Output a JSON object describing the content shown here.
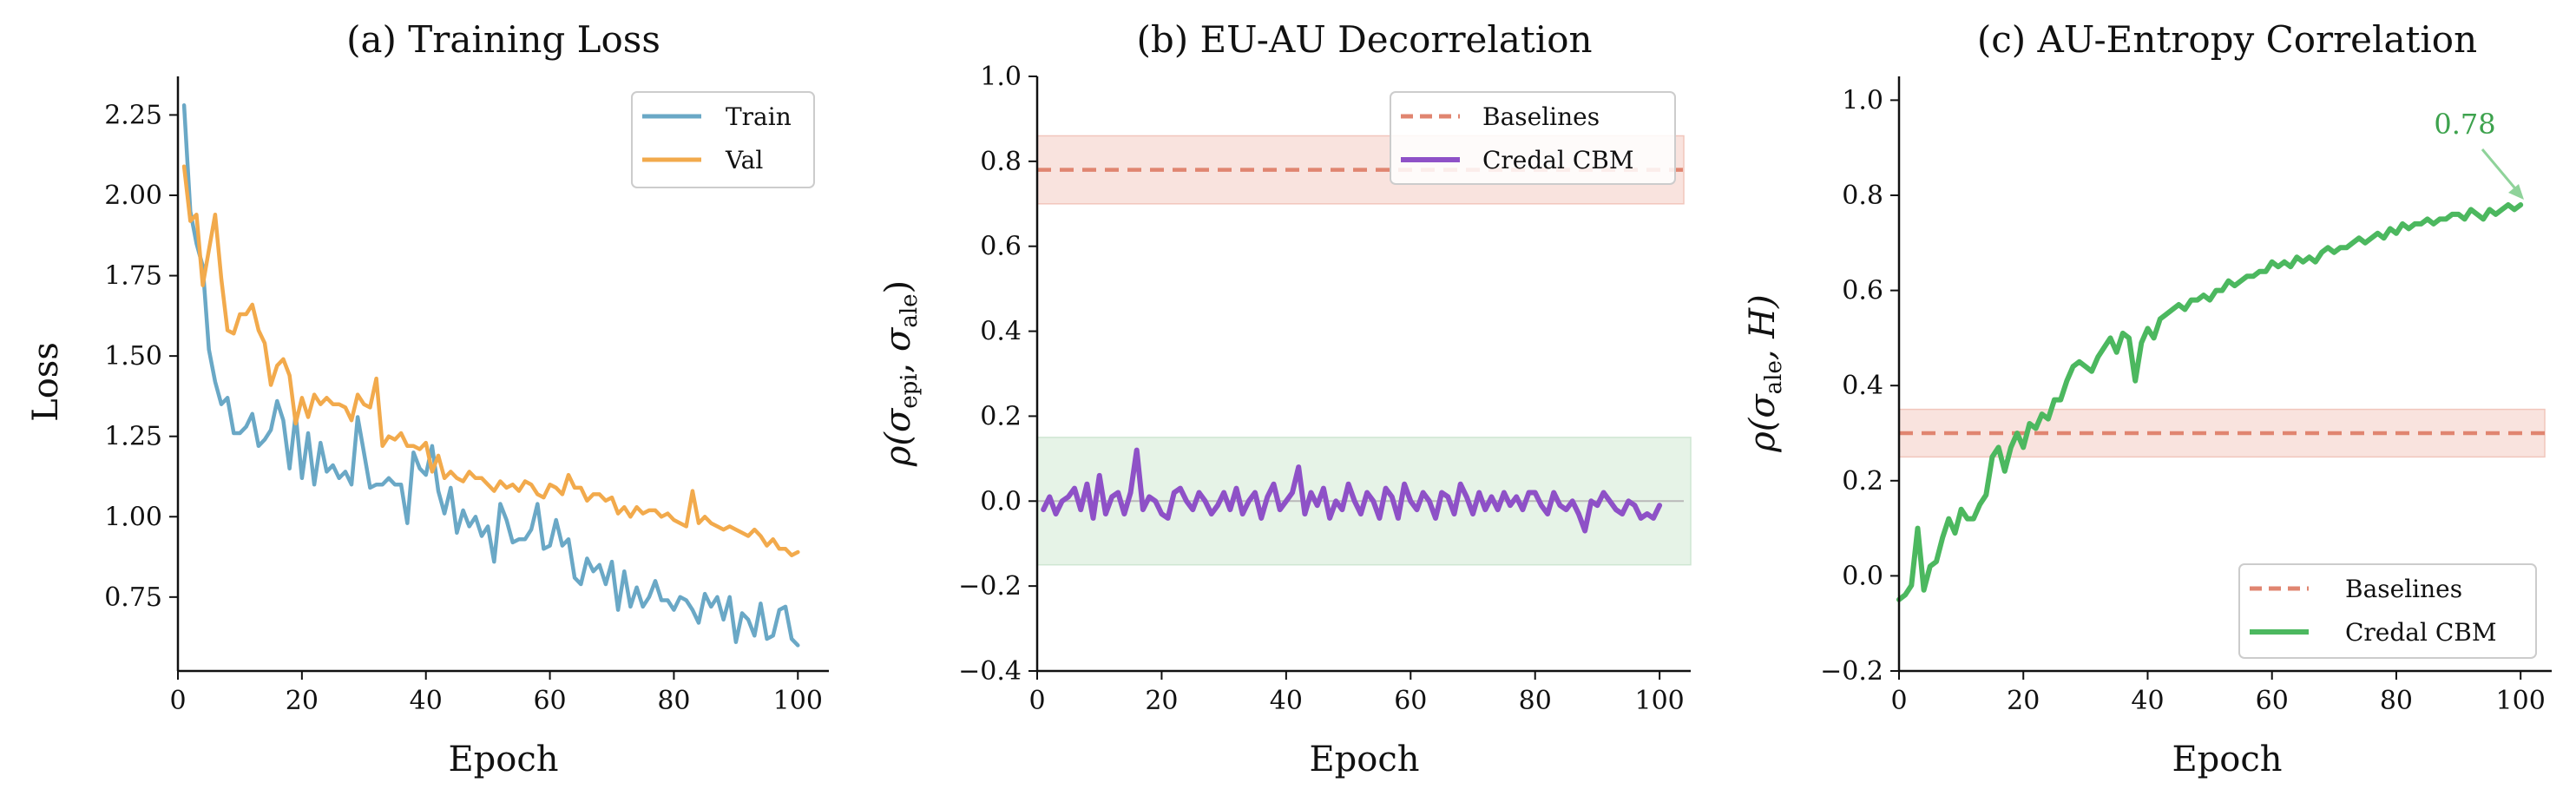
{
  "colors": {
    "train": "#6aa8c6",
    "val": "#f2aa4c",
    "baseline": "#e08570",
    "credal_b": "#8e51c7",
    "credal_c": "#4cb85f",
    "axis": "#111111",
    "baseline_band": "#f9e3de",
    "zero_band": "#e6f3e7",
    "zero_line": "#b8b8b8",
    "annot": "#3da24d"
  },
  "chart_data": [
    {
      "type": "line",
      "title": "(a) Training Loss",
      "xlabel": "Epoch",
      "ylabel": "Loss",
      "xlim": [
        0,
        105
      ],
      "ylim": [
        0.52,
        2.37
      ],
      "xticks": [
        "0",
        "20",
        "40",
        "60",
        "80",
        "100"
      ],
      "xtick_values": [
        0,
        20,
        40,
        60,
        80,
        100
      ],
      "yticks": [
        "0.75",
        "1.00",
        "1.25",
        "1.50",
        "1.75",
        "2.00",
        "2.25"
      ],
      "ytick_values": [
        0.75,
        1.0,
        1.25,
        1.5,
        1.75,
        2.0,
        2.25
      ],
      "legend": [
        "Train",
        "Val"
      ],
      "x": [
        1,
        2,
        3,
        4,
        5,
        6,
        7,
        8,
        9,
        10,
        11,
        12,
        13,
        14,
        15,
        16,
        17,
        18,
        19,
        20,
        21,
        22,
        23,
        24,
        25,
        26,
        27,
        28,
        29,
        30,
        31,
        32,
        33,
        34,
        35,
        36,
        37,
        38,
        39,
        40,
        41,
        42,
        43,
        44,
        45,
        46,
        47,
        48,
        49,
        50,
        51,
        52,
        53,
        54,
        55,
        56,
        57,
        58,
        59,
        60,
        61,
        62,
        63,
        64,
        65,
        66,
        67,
        68,
        69,
        70,
        71,
        72,
        73,
        74,
        75,
        76,
        77,
        78,
        79,
        80,
        81,
        82,
        83,
        84,
        85,
        86,
        87,
        88,
        89,
        90,
        91,
        92,
        93,
        94,
        95,
        96,
        97,
        98,
        99,
        100
      ],
      "series": [
        {
          "name": "Train",
          "color_key": "train",
          "values": [
            2.28,
            1.95,
            1.85,
            1.78,
            1.52,
            1.42,
            1.35,
            1.37,
            1.26,
            1.26,
            1.28,
            1.32,
            1.22,
            1.24,
            1.27,
            1.36,
            1.3,
            1.15,
            1.32,
            1.12,
            1.26,
            1.1,
            1.23,
            1.14,
            1.16,
            1.12,
            1.14,
            1.1,
            1.31,
            1.2,
            1.09,
            1.1,
            1.1,
            1.12,
            1.1,
            1.1,
            0.98,
            1.2,
            1.15,
            1.13,
            1.22,
            1.08,
            1.01,
            1.09,
            0.95,
            1.02,
            0.97,
            1.0,
            0.94,
            0.97,
            0.86,
            1.04,
            0.99,
            0.92,
            0.93,
            0.93,
            0.96,
            1.04,
            0.9,
            0.91,
            0.99,
            0.91,
            0.93,
            0.81,
            0.79,
            0.87,
            0.83,
            0.85,
            0.79,
            0.86,
            0.71,
            0.83,
            0.72,
            0.78,
            0.72,
            0.75,
            0.8,
            0.74,
            0.74,
            0.71,
            0.75,
            0.74,
            0.71,
            0.67,
            0.76,
            0.72,
            0.75,
            0.68,
            0.75,
            0.61,
            0.7,
            0.68,
            0.63,
            0.73,
            0.62,
            0.63,
            0.71,
            0.72,
            0.62,
            0.6
          ]
        },
        {
          "name": "Val",
          "color_key": "val",
          "values": [
            2.09,
            1.92,
            1.94,
            1.72,
            1.83,
            1.94,
            1.74,
            1.58,
            1.57,
            1.63,
            1.63,
            1.66,
            1.58,
            1.54,
            1.41,
            1.47,
            1.49,
            1.44,
            1.29,
            1.37,
            1.31,
            1.38,
            1.35,
            1.37,
            1.35,
            1.35,
            1.34,
            1.3,
            1.38,
            1.35,
            1.34,
            1.43,
            1.22,
            1.25,
            1.24,
            1.26,
            1.22,
            1.22,
            1.21,
            1.23,
            1.14,
            1.19,
            1.12,
            1.14,
            1.12,
            1.11,
            1.14,
            1.12,
            1.12,
            1.1,
            1.08,
            1.11,
            1.09,
            1.1,
            1.08,
            1.11,
            1.1,
            1.07,
            1.06,
            1.1,
            1.09,
            1.07,
            1.13,
            1.09,
            1.09,
            1.05,
            1.07,
            1.07,
            1.05,
            1.06,
            1.01,
            1.03,
            1.0,
            1.03,
            1.01,
            1.02,
            1.02,
            1.0,
            1.01,
            0.99,
            0.98,
            0.97,
            1.08,
            0.98,
            1.0,
            0.98,
            0.97,
            0.96,
            0.97,
            0.96,
            0.95,
            0.94,
            0.96,
            0.94,
            0.91,
            0.93,
            0.9,
            0.9,
            0.88,
            0.89
          ]
        }
      ]
    },
    {
      "type": "line",
      "title": "(b) EU-AU Decorrelation",
      "xlabel": "Epoch",
      "ylabel": "ρ(σepi, σale)",
      "ylabel_parts": {
        "rho": "ρ(",
        "sigma1": "σ",
        "sub1": "epi",
        "sep": ", ",
        "sigma2": "σ",
        "sub2": "ale",
        "close": ")"
      },
      "xlim": [
        0,
        105
      ],
      "ylim": [
        -0.4,
        1.0
      ],
      "xticks": [
        "0",
        "20",
        "40",
        "60",
        "80",
        "100"
      ],
      "xtick_values": [
        0,
        20,
        40,
        60,
        80,
        100
      ],
      "yticks": [
        "−0.4",
        "−0.2",
        "0.0",
        "0.2",
        "0.4",
        "0.6",
        "0.8",
        "1.0"
      ],
      "ytick_values": [
        -0.4,
        -0.2,
        0.0,
        0.2,
        0.4,
        0.6,
        0.8,
        1.0
      ],
      "legend": [
        "Baselines",
        "Credal CBM"
      ],
      "baseline": {
        "value": 0.78,
        "band": [
          0.7,
          0.86
        ]
      },
      "zero_band": [
        -0.15,
        0.15
      ],
      "x": [
        1,
        2,
        3,
        4,
        5,
        6,
        7,
        8,
        9,
        10,
        11,
        12,
        13,
        14,
        15,
        16,
        17,
        18,
        19,
        20,
        21,
        22,
        23,
        24,
        25,
        26,
        27,
        28,
        29,
        30,
        31,
        32,
        33,
        34,
        35,
        36,
        37,
        38,
        39,
        40,
        41,
        42,
        43,
        44,
        45,
        46,
        47,
        48,
        49,
        50,
        51,
        52,
        53,
        54,
        55,
        56,
        57,
        58,
        59,
        60,
        61,
        62,
        63,
        64,
        65,
        66,
        67,
        68,
        69,
        70,
        71,
        72,
        73,
        74,
        75,
        76,
        77,
        78,
        79,
        80,
        81,
        82,
        83,
        84,
        85,
        86,
        87,
        88,
        89,
        90,
        91,
        92,
        93,
        94,
        95,
        96,
        97,
        98,
        99,
        100
      ],
      "series": [
        {
          "name": "Credal CBM",
          "color_key": "credal_b",
          "values": [
            -0.02,
            0.01,
            -0.03,
            0.0,
            0.01,
            0.03,
            -0.02,
            0.04,
            -0.04,
            0.06,
            -0.03,
            0.01,
            0.02,
            -0.03,
            0.02,
            0.12,
            -0.02,
            0.01,
            0.0,
            -0.03,
            -0.04,
            0.02,
            0.03,
            0.0,
            -0.02,
            0.02,
            0.0,
            -0.03,
            -0.01,
            0.02,
            -0.02,
            0.03,
            -0.03,
            0.0,
            0.02,
            -0.04,
            0.01,
            0.04,
            -0.02,
            0.0,
            0.02,
            0.08,
            -0.03,
            0.02,
            -0.01,
            0.03,
            -0.04,
            0.0,
            -0.02,
            0.04,
            0.0,
            -0.03,
            0.02,
            0.0,
            -0.04,
            0.03,
            0.01,
            -0.04,
            0.04,
            0.0,
            -0.02,
            0.02,
            0.0,
            -0.04,
            0.02,
            0.01,
            -0.03,
            0.04,
            0.01,
            -0.03,
            0.02,
            -0.02,
            0.01,
            -0.02,
            0.02,
            -0.01,
            0.01,
            -0.02,
            0.02,
            0.02,
            -0.01,
            -0.03,
            0.02,
            -0.01,
            -0.02,
            0.0,
            -0.03,
            -0.07,
            0.0,
            -0.01,
            0.02,
            0.0,
            -0.02,
            -0.03,
            0.0,
            -0.01,
            -0.04,
            -0.03,
            -0.04,
            -0.01
          ]
        }
      ]
    },
    {
      "type": "line",
      "title": "(c) AU-Entropy Correlation",
      "xlabel": "Epoch",
      "ylabel": "ρ(σale, H)",
      "ylabel_parts": {
        "rho": "ρ(",
        "sigma1": "σ",
        "sub1": "ale",
        "rest": ", H)"
      },
      "xlim": [
        0,
        105
      ],
      "ylim": [
        -0.2,
        1.05
      ],
      "xticks": [
        "0",
        "20",
        "40",
        "60",
        "80",
        "100"
      ],
      "xtick_values": [
        0,
        20,
        40,
        60,
        80,
        100
      ],
      "yticks": [
        "−0.2",
        "0.0",
        "0.2",
        "0.4",
        "0.6",
        "0.8",
        "1.0"
      ],
      "ytick_values": [
        -0.2,
        0.0,
        0.2,
        0.4,
        0.6,
        0.8,
        1.0
      ],
      "legend": [
        "Baselines",
        "Credal CBM"
      ],
      "baseline": {
        "value": 0.3,
        "band": [
          0.25,
          0.35
        ]
      },
      "annotation": {
        "text": "0.78",
        "x": 100,
        "y": 0.78
      },
      "x": [
        0,
        1,
        2,
        3,
        4,
        5,
        6,
        7,
        8,
        9,
        10,
        11,
        12,
        13,
        14,
        15,
        16,
        17,
        18,
        19,
        20,
        21,
        22,
        23,
        24,
        25,
        26,
        27,
        28,
        29,
        30,
        31,
        32,
        33,
        34,
        35,
        36,
        37,
        38,
        39,
        40,
        41,
        42,
        43,
        44,
        45,
        46,
        47,
        48,
        49,
        50,
        51,
        52,
        53,
        54,
        55,
        56,
        57,
        58,
        59,
        60,
        61,
        62,
        63,
        64,
        65,
        66,
        67,
        68,
        69,
        70,
        71,
        72,
        73,
        74,
        75,
        76,
        77,
        78,
        79,
        80,
        81,
        82,
        83,
        84,
        85,
        86,
        87,
        88,
        89,
        90,
        91,
        92,
        93,
        94,
        95,
        96,
        97,
        98,
        99,
        100
      ],
      "series": [
        {
          "name": "Credal CBM",
          "color_key": "credal_c",
          "values": [
            -0.05,
            -0.04,
            -0.02,
            0.1,
            -0.03,
            0.02,
            0.03,
            0.08,
            0.12,
            0.09,
            0.14,
            0.12,
            0.12,
            0.15,
            0.17,
            0.25,
            0.27,
            0.22,
            0.27,
            0.3,
            0.27,
            0.32,
            0.31,
            0.34,
            0.33,
            0.37,
            0.37,
            0.41,
            0.44,
            0.45,
            0.44,
            0.43,
            0.46,
            0.48,
            0.5,
            0.47,
            0.51,
            0.5,
            0.41,
            0.49,
            0.52,
            0.5,
            0.54,
            0.55,
            0.56,
            0.57,
            0.56,
            0.58,
            0.58,
            0.59,
            0.58,
            0.6,
            0.6,
            0.62,
            0.61,
            0.62,
            0.63,
            0.63,
            0.64,
            0.64,
            0.66,
            0.65,
            0.66,
            0.65,
            0.67,
            0.66,
            0.67,
            0.66,
            0.68,
            0.69,
            0.68,
            0.69,
            0.69,
            0.7,
            0.71,
            0.7,
            0.71,
            0.72,
            0.71,
            0.73,
            0.72,
            0.74,
            0.73,
            0.74,
            0.74,
            0.75,
            0.74,
            0.75,
            0.75,
            0.76,
            0.76,
            0.75,
            0.77,
            0.76,
            0.75,
            0.77,
            0.76,
            0.77,
            0.78,
            0.77,
            0.78
          ]
        }
      ]
    }
  ]
}
